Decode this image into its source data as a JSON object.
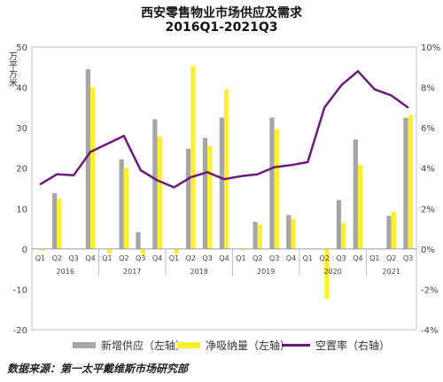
{
  "title_line1": "西安零售物业市场供应及需求",
  "title_line2": "2016Q1-2021Q3",
  "source": "数据来源：第一太平戴维斯市场研究部",
  "chart_data": {
    "type": "bar",
    "categories": [
      "Q1",
      "Q2",
      "Q3",
      "Q4",
      "Q1",
      "Q2",
      "Q3",
      "Q4",
      "Q1",
      "Q2",
      "Q3",
      "Q4",
      "Q1",
      "Q2",
      "Q3",
      "Q4",
      "Q1",
      "Q2",
      "Q3",
      "Q4",
      "Q1",
      "Q2",
      "Q3"
    ],
    "years": [
      {
        "label": "2016",
        "start": 0,
        "count": 4
      },
      {
        "label": "2017",
        "start": 4,
        "count": 4
      },
      {
        "label": "2018",
        "start": 8,
        "count": 4
      },
      {
        "label": "2019",
        "start": 12,
        "count": 4
      },
      {
        "label": "2020",
        "start": 16,
        "count": 4
      },
      {
        "label": "2021",
        "start": 20,
        "count": 3
      }
    ],
    "ylabel": "万平方米",
    "ylim": [
      -20,
      50
    ],
    "y_ticks": [
      -20,
      -10,
      0,
      10,
      20,
      30,
      40,
      50
    ],
    "y2lim": [
      -4,
      10
    ],
    "y2_ticks": [
      -4,
      -2,
      0,
      2,
      4,
      6,
      8,
      10
    ],
    "y2_tick_labels": [
      "-4%",
      "-2%",
      "0%",
      "2%",
      "4%",
      "6%",
      "8%",
      "10%"
    ],
    "series": [
      {
        "name": "新增供应（左轴）",
        "type": "bar",
        "axis": "left",
        "color": "#a6a6a6",
        "values": [
          0,
          13.8,
          0,
          44.5,
          0,
          22.2,
          4.2,
          32.1,
          0,
          24.8,
          27.5,
          32.5,
          0,
          6.7,
          32.5,
          8.4,
          0,
          0,
          12.1,
          27.1,
          0,
          8.2,
          32.5
        ]
      },
      {
        "name": "净吸纳量（左轴）",
        "type": "bar",
        "axis": "left",
        "color": "#ffef2e",
        "values": [
          -0.4,
          12.4,
          0,
          40,
          -1.2,
          20,
          -1.5,
          27.8,
          -1.2,
          45.3,
          25.4,
          39.5,
          -0.3,
          6,
          29.6,
          7.4,
          0,
          -12.4,
          6.4,
          20.8,
          0,
          9.2,
          33.2
        ]
      },
      {
        "name": "空置率（右轴）",
        "type": "line",
        "axis": "right",
        "color": "#6a1b7a",
        "values": [
          3.2,
          3.7,
          3.65,
          4.8,
          5.2,
          5.6,
          3.9,
          3.4,
          3.05,
          3.55,
          3.8,
          3.45,
          3.6,
          3.7,
          4.05,
          4.15,
          4.3,
          7.0,
          8.1,
          8.8,
          7.9,
          7.6,
          7.0
        ]
      }
    ],
    "legend_position": "bottom",
    "grid": false
  }
}
